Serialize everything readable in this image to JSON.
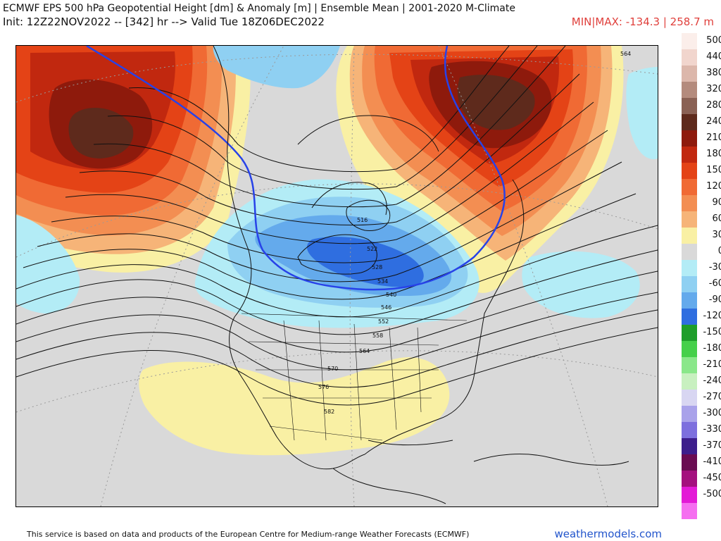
{
  "header": {
    "title": "ECMWF EPS 500 hPa Geopotential Height [dm] & Anomaly [m] | Ensemble Mean | 2001-2020 M-Climate",
    "subtitle": "Init: 12Z22NOV2022 -- [342] hr --> Valid Tue 18Z06DEC2022",
    "minmax": "MIN|MAX: -134.3 | 258.7 m"
  },
  "colors": {
    "red_accent": "#e0403c",
    "brand_blue": "#2255cc",
    "neutral": "#d9d9d9"
  },
  "legend": {
    "items": [
      {
        "label": "500",
        "color": "#fbeeea"
      },
      {
        "label": "440",
        "color": "#f1d5cd"
      },
      {
        "label": "380",
        "color": "#dcb7ab"
      },
      {
        "label": "320",
        "color": "#b48b7d"
      },
      {
        "label": "280",
        "color": "#8a6154"
      },
      {
        "label": "240",
        "color": "#5e2a1c"
      },
      {
        "label": "210",
        "color": "#8e1a0c"
      },
      {
        "label": "180",
        "color": "#c1280f"
      },
      {
        "label": "150",
        "color": "#e44316"
      },
      {
        "label": "120",
        "color": "#f06a34"
      },
      {
        "label": "90",
        "color": "#f38e52"
      },
      {
        "label": "60",
        "color": "#f6b478"
      },
      {
        "label": "30",
        "color": "#f9f0a4"
      },
      {
        "label": "0",
        "color": "#d9d9d9"
      },
      {
        "label": "-30",
        "color": "#b3ecf6"
      },
      {
        "label": "-60",
        "color": "#8fd0f2"
      },
      {
        "label": "-90",
        "color": "#64aaec"
      },
      {
        "label": "-120",
        "color": "#2f6ee0"
      },
      {
        "label": "-150",
        "color": "#1e9e2a"
      },
      {
        "label": "-180",
        "color": "#45d04a"
      },
      {
        "label": "-210",
        "color": "#8ae78a"
      },
      {
        "label": "-240",
        "color": "#c8f0c0"
      },
      {
        "label": "-270",
        "color": "#d8d6f2"
      },
      {
        "label": "-300",
        "color": "#a9a2ea"
      },
      {
        "label": "-330",
        "color": "#7d6fde"
      },
      {
        "label": "-370",
        "color": "#3d1e8c"
      },
      {
        "label": "-410",
        "color": "#6a0c52"
      },
      {
        "label": "-450",
        "color": "#a4107e"
      },
      {
        "label": "-500",
        "color": "#e31ad6"
      },
      {
        "label": "",
        "color": "#f56ef0"
      }
    ]
  },
  "map": {
    "contour_labels": [
      "564",
      "516",
      "522",
      "528",
      "534",
      "540",
      "546",
      "552",
      "558",
      "564",
      "570",
      "576",
      "582"
    ]
  },
  "footer": {
    "attribution": "This service is based on data and products of the European Centre for Medium-range Weather Forecasts (ECMWF)",
    "brand": "weathermodels.com"
  }
}
